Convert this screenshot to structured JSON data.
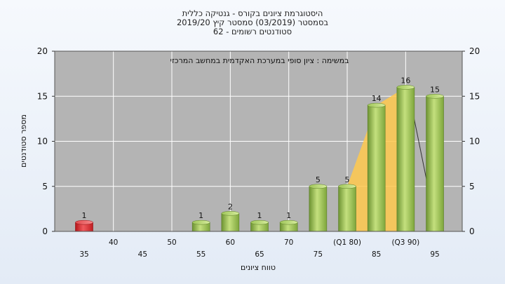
{
  "chart_data": {
    "type": "bar",
    "title_lines": [
      "היסטוגרמת ציונים בקורס - גנטיקה כללית",
      "בסמסטר  (03/2019)  סמסטר קיץ  2019/20",
      "סטודנטים רשומים - 62"
    ],
    "annotation": "במשימה : ציון סופי במערכת האקדמית במחשב המרכזי",
    "xlabel": "טווח ציונים",
    "ylabel": "מספר סטודנטים",
    "ylim": [
      0,
      20
    ],
    "yticks": [
      0,
      5,
      10,
      15,
      20
    ],
    "categories": [
      "35",
      "40",
      "45",
      "50",
      "55",
      "60",
      "65",
      "70",
      "75",
      "(Q1 80)",
      "85",
      "(Q3 90)",
      "95"
    ],
    "values": [
      1,
      0,
      0,
      0,
      1,
      2,
      1,
      1,
      5,
      5,
      14,
      16,
      15
    ],
    "data_labels": [
      "1",
      "",
      "",
      "",
      "1",
      "2",
      "1",
      "1",
      "5",
      "5",
      "14",
      "16",
      "15"
    ],
    "quartile_band": {
      "categories": [
        "(Q1 80)",
        "85",
        "(Q3 90)"
      ],
      "color": "#ffc94d"
    },
    "grid": true,
    "colors": {
      "fail_bar": "#d9262b",
      "pass_bar": "#a3c95a",
      "plot_bg": "#b4b4b4",
      "grid": "#ffffff"
    }
  }
}
